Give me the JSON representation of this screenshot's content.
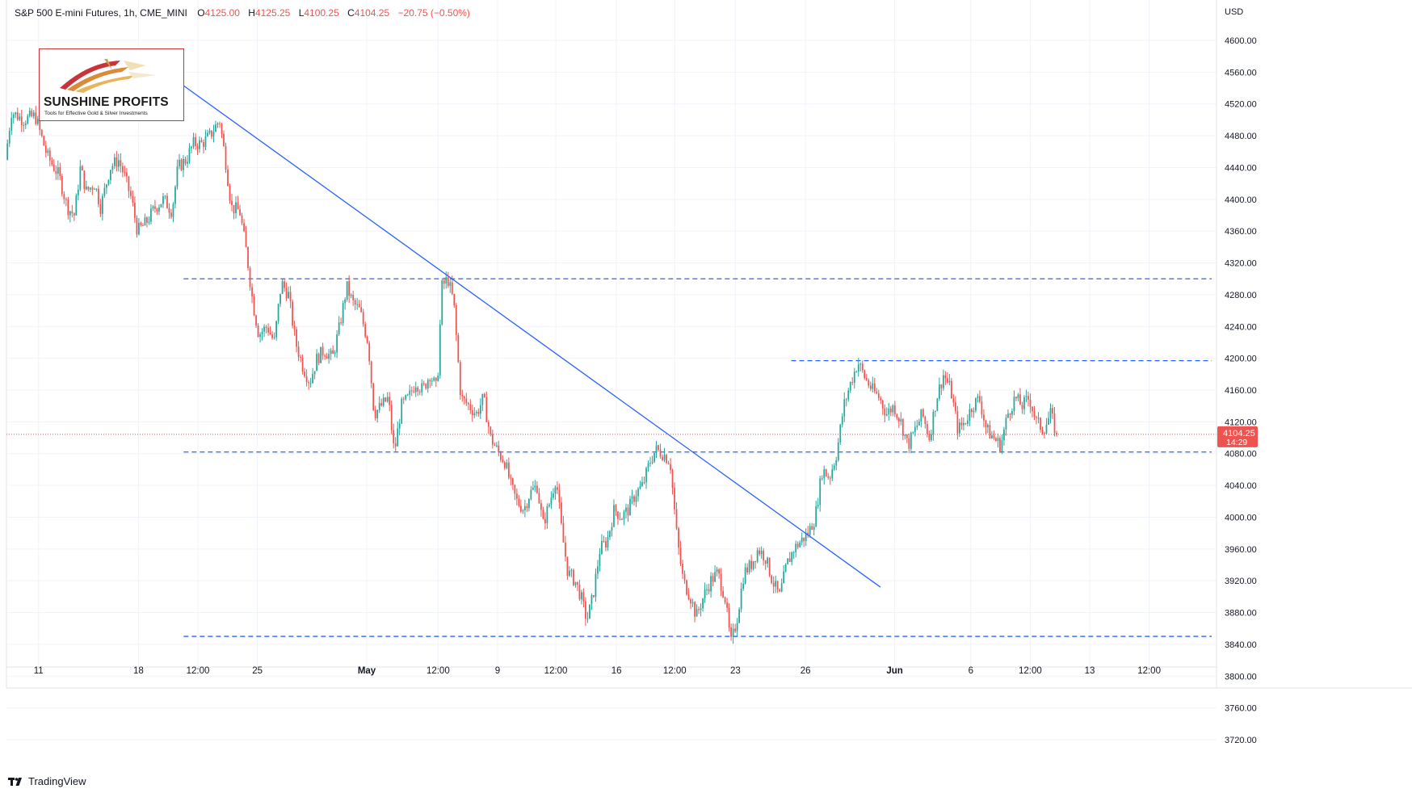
{
  "header": {
    "title": "S&P 500 E-mini Futures, 1h, CME_MINI",
    "open_label": "O",
    "open": "4125.00",
    "high_label": "H",
    "high": "4125.25",
    "low_label": "L",
    "low": "4100.25",
    "close_label": "C",
    "close": "4104.25",
    "change": "−20.75 (−0.50%)"
  },
  "logo": {
    "name": "SUNSHINE PROFITS",
    "tagline": "Tools for Effective Gold & Silver Investments"
  },
  "footer": {
    "brand": "TradingView"
  },
  "colors": {
    "up": "#26a69a",
    "down": "#ef5350",
    "trendline": "#2962ff",
    "level_line": "#2962ff",
    "grid": "#f0f3fa",
    "price_line": "#ef5350"
  },
  "chart_data": {
    "type": "candlestick",
    "currency": "USD",
    "ylim": [
      3700,
      4620
    ],
    "y_ticks": [
      3720,
      3760,
      3800,
      3840,
      3880,
      3920,
      3960,
      4000,
      4040,
      4080,
      4120,
      4160,
      4200,
      4240,
      4280,
      4320,
      4360,
      4400,
      4440,
      4480,
      4520,
      4560,
      4600
    ],
    "y_tick_labels": [
      "3720.00",
      "3760.00",
      "3800.00",
      "3840.00",
      "3880.00",
      "3920.00",
      "3960.00",
      "4000.00",
      "4040.00",
      "4080.00",
      "4120.00",
      "4160.00",
      "4200.00",
      "4240.00",
      "4280.00",
      "4320.00",
      "4360.00",
      "4400.00",
      "4440.00",
      "4480.00",
      "4520.00",
      "4560.00",
      "4600.00"
    ],
    "x_ticks": [
      {
        "label": "11",
        "t": 0.027
      },
      {
        "label": "18",
        "t": 0.111
      },
      {
        "label": "12:00",
        "t": 0.161
      },
      {
        "label": "25",
        "t": 0.211
      },
      {
        "label": "May",
        "t": 0.303,
        "bold": true
      },
      {
        "label": "12:00",
        "t": 0.363
      },
      {
        "label": "9",
        "t": 0.413
      },
      {
        "label": "12:00",
        "t": 0.462
      },
      {
        "label": "16",
        "t": 0.513
      },
      {
        "label": "12:00",
        "t": 0.562
      },
      {
        "label": "23",
        "t": 0.613
      },
      {
        "label": "26",
        "t": 0.672
      },
      {
        "label": "Jun",
        "t": 0.747,
        "bold": true
      },
      {
        "label": "6",
        "t": 0.811
      },
      {
        "label": "12:00",
        "t": 0.861
      },
      {
        "label": "13",
        "t": 0.911
      },
      {
        "label": "12:00",
        "t": 0.961
      }
    ],
    "last_price": "4104.25",
    "countdown": "14:29",
    "last_value": 4104.25,
    "horizontal_levels": [
      {
        "price": 4300,
        "from": 0.149,
        "to": 1.0,
        "style": "dashed"
      },
      {
        "price": 4197,
        "from": 0.66,
        "to": 1.0,
        "style": "dashed"
      },
      {
        "price": 4082,
        "from": 0.149,
        "to": 1.0,
        "style": "dashed"
      },
      {
        "price": 3850,
        "from": 0.149,
        "to": 1.0,
        "style": "dashed"
      }
    ],
    "trendline": {
      "t1": 0.149,
      "p1": 4543,
      "t2": 0.735,
      "p2": 3912
    },
    "path_points": [
      [
        0.0,
        4450
      ],
      [
        0.005,
        4510
      ],
      [
        0.015,
        4500
      ],
      [
        0.025,
        4505
      ],
      [
        0.035,
        4455
      ],
      [
        0.045,
        4430
      ],
      [
        0.052,
        4390
      ],
      [
        0.058,
        4380
      ],
      [
        0.063,
        4440
      ],
      [
        0.068,
        4410
      ],
      [
        0.075,
        4420
      ],
      [
        0.08,
        4390
      ],
      [
        0.088,
        4440
      ],
      [
        0.095,
        4450
      ],
      [
        0.1,
        4430
      ],
      [
        0.106,
        4400
      ],
      [
        0.111,
        4360
      ],
      [
        0.118,
        4370
      ],
      [
        0.126,
        4390
      ],
      [
        0.133,
        4400
      ],
      [
        0.14,
        4385
      ],
      [
        0.145,
        4440
      ],
      [
        0.152,
        4450
      ],
      [
        0.158,
        4470
      ],
      [
        0.165,
        4470
      ],
      [
        0.172,
        4480
      ],
      [
        0.18,
        4500
      ],
      [
        0.185,
        4450
      ],
      [
        0.19,
        4390
      ],
      [
        0.197,
        4385
      ],
      [
        0.203,
        4330
      ],
      [
        0.208,
        4270
      ],
      [
        0.213,
        4230
      ],
      [
        0.22,
        4240
      ],
      [
        0.226,
        4220
      ],
      [
        0.232,
        4295
      ],
      [
        0.238,
        4280
      ],
      [
        0.244,
        4220
      ],
      [
        0.25,
        4190
      ],
      [
        0.256,
        4170
      ],
      [
        0.262,
        4200
      ],
      [
        0.268,
        4210
      ],
      [
        0.275,
        4200
      ],
      [
        0.281,
        4240
      ],
      [
        0.287,
        4290
      ],
      [
        0.292,
        4270
      ],
      [
        0.298,
        4260
      ],
      [
        0.305,
        4220
      ],
      [
        0.31,
        4130
      ],
      [
        0.316,
        4140
      ],
      [
        0.322,
        4150
      ],
      [
        0.327,
        4080
      ],
      [
        0.333,
        4140
      ],
      [
        0.339,
        4150
      ],
      [
        0.345,
        4170
      ],
      [
        0.351,
        4160
      ],
      [
        0.357,
        4180
      ],
      [
        0.363,
        4160
      ],
      [
        0.367,
        4290
      ],
      [
        0.372,
        4300
      ],
      [
        0.377,
        4270
      ],
      [
        0.383,
        4150
      ],
      [
        0.39,
        4140
      ],
      [
        0.396,
        4130
      ],
      [
        0.402,
        4150
      ],
      [
        0.408,
        4100
      ],
      [
        0.415,
        4080
      ],
      [
        0.42,
        4070
      ],
      [
        0.425,
        4040
      ],
      [
        0.43,
        4020
      ],
      [
        0.436,
        4010
      ],
      [
        0.441,
        4030
      ],
      [
        0.447,
        4040
      ],
      [
        0.452,
        3990
      ],
      [
        0.458,
        4020
      ],
      [
        0.463,
        4050
      ],
      [
        0.468,
        3980
      ],
      [
        0.473,
        3930
      ],
      [
        0.479,
        3920
      ],
      [
        0.484,
        3900
      ],
      [
        0.489,
        3870
      ],
      [
        0.494,
        3900
      ],
      [
        0.5,
        3960
      ],
      [
        0.506,
        3970
      ],
      [
        0.512,
        4010
      ],
      [
        0.518,
        4000
      ],
      [
        0.524,
        4010
      ],
      [
        0.53,
        4030
      ],
      [
        0.536,
        4040
      ],
      [
        0.542,
        4070
      ],
      [
        0.547,
        4085
      ],
      [
        0.553,
        4080
      ],
      [
        0.559,
        4070
      ],
      [
        0.565,
        3970
      ],
      [
        0.57,
        3920
      ],
      [
        0.576,
        3900
      ],
      [
        0.581,
        3875
      ],
      [
        0.587,
        3900
      ],
      [
        0.593,
        3920
      ],
      [
        0.599,
        3930
      ],
      [
        0.605,
        3900
      ],
      [
        0.61,
        3840
      ],
      [
        0.615,
        3870
      ],
      [
        0.621,
        3930
      ],
      [
        0.627,
        3940
      ],
      [
        0.633,
        3960
      ],
      [
        0.639,
        3950
      ],
      [
        0.645,
        3920
      ],
      [
        0.651,
        3900
      ],
      [
        0.657,
        3940
      ],
      [
        0.663,
        3960
      ],
      [
        0.669,
        3970
      ],
      [
        0.675,
        3980
      ],
      [
        0.681,
        4000
      ],
      [
        0.687,
        4060
      ],
      [
        0.693,
        4050
      ],
      [
        0.699,
        4080
      ],
      [
        0.705,
        4140
      ],
      [
        0.711,
        4170
      ],
      [
        0.717,
        4195
      ],
      [
        0.723,
        4175
      ],
      [
        0.729,
        4160
      ],
      [
        0.735,
        4150
      ],
      [
        0.741,
        4130
      ],
      [
        0.747,
        4140
      ],
      [
        0.753,
        4120
      ],
      [
        0.759,
        4090
      ],
      [
        0.765,
        4110
      ],
      [
        0.771,
        4130
      ],
      [
        0.777,
        4100
      ],
      [
        0.783,
        4150
      ],
      [
        0.789,
        4180
      ],
      [
        0.795,
        4160
      ],
      [
        0.801,
        4110
      ],
      [
        0.807,
        4120
      ],
      [
        0.813,
        4140
      ],
      [
        0.819,
        4150
      ],
      [
        0.825,
        4110
      ],
      [
        0.831,
        4100
      ],
      [
        0.837,
        4090
      ],
      [
        0.843,
        4130
      ],
      [
        0.849,
        4150
      ],
      [
        0.855,
        4140
      ],
      [
        0.861,
        4150
      ],
      [
        0.867,
        4120
      ],
      [
        0.873,
        4110
      ],
      [
        0.879,
        4130
      ],
      [
        0.884,
        4104
      ]
    ]
  }
}
